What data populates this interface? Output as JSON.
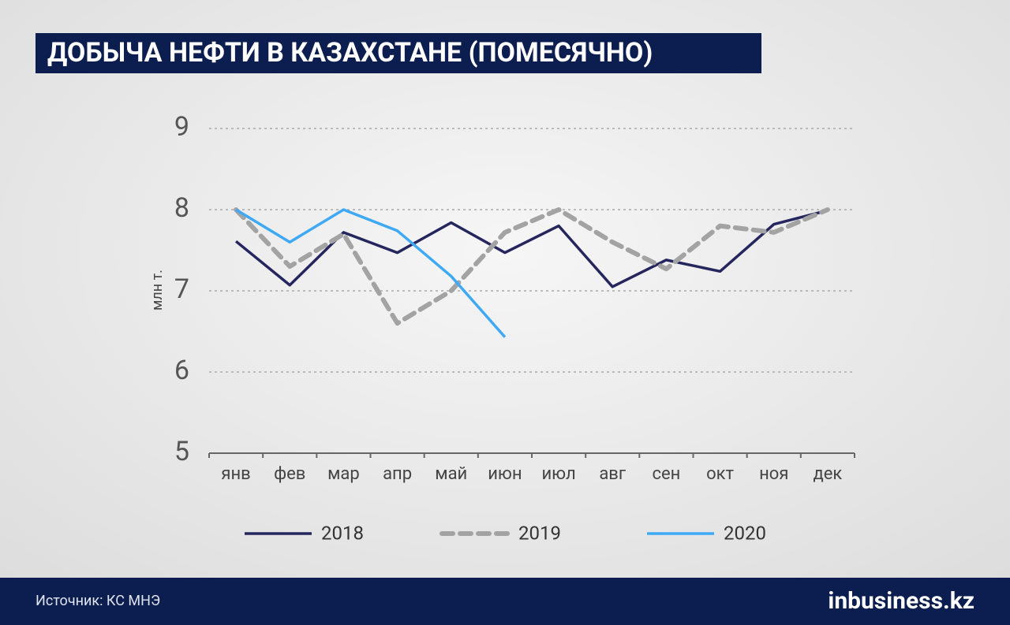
{
  "chart_data": {
    "type": "line",
    "title": "ДОБЫЧА НЕФТИ В КАЗАХСТАНЕ (ПОМЕСЯЧНО)",
    "y_label": "млн т.",
    "categories": [
      "янв",
      "фев",
      "мар",
      "апр",
      "май",
      "июн",
      "июл",
      "авг",
      "сен",
      "окт",
      "ноя",
      "дек"
    ],
    "series": [
      {
        "name": "2018",
        "color": "#25265e",
        "dashed": false,
        "values": [
          7.61,
          7.07,
          7.72,
          7.47,
          7.84,
          7.47,
          7.8,
          7.05,
          7.38,
          7.24,
          7.82,
          7.99
        ]
      },
      {
        "name": "2019",
        "color": "#a3a3a3",
        "dashed": true,
        "values": [
          8.0,
          7.3,
          7.7,
          6.6,
          7.0,
          7.72,
          8.0,
          7.6,
          7.27,
          7.8,
          7.72,
          8.0
        ]
      },
      {
        "name": "2020",
        "color": "#3fa9f5",
        "dashed": false,
        "values": [
          8.0,
          7.6,
          8.0,
          7.74,
          7.18,
          6.43,
          null,
          null,
          null,
          null,
          null,
          null
        ]
      }
    ],
    "ylim": [
      5,
      9
    ],
    "yticks": [
      5,
      6,
      7,
      8,
      9
    ],
    "grid": true,
    "legend": "bottom",
    "source": "Источник: КС МНЭ",
    "logo": "inbusiness.kz"
  }
}
